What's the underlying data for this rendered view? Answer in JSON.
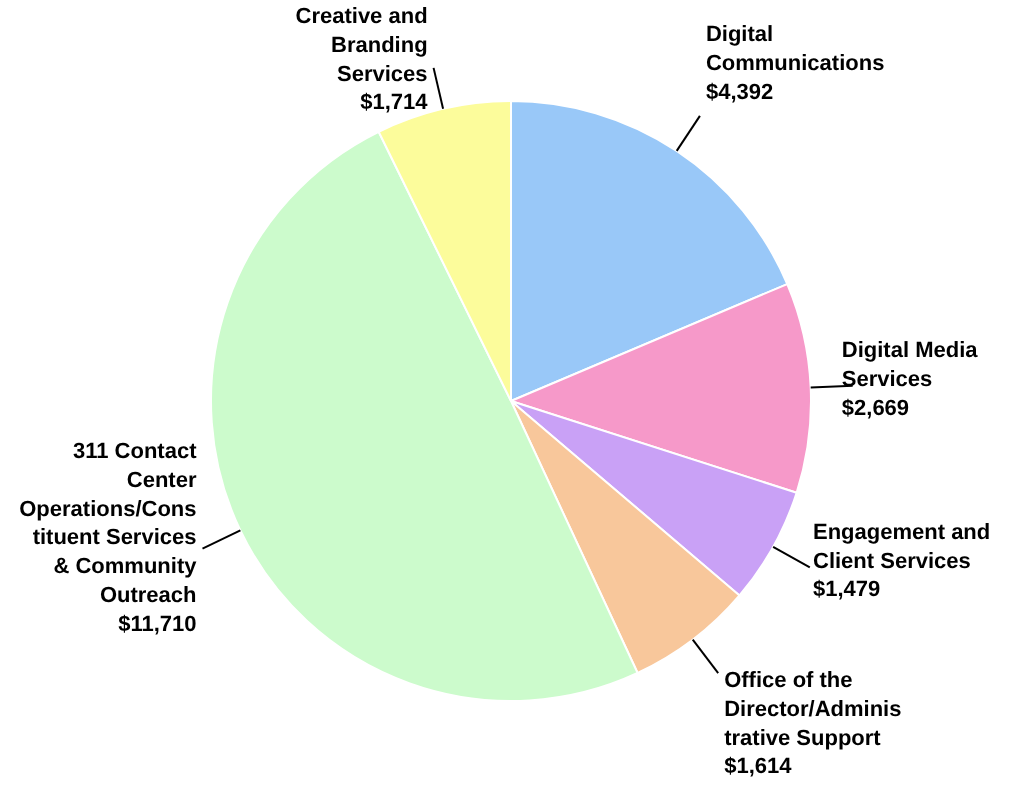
{
  "chart_data": {
    "type": "pie",
    "categories": [
      "Digital\nCommunications",
      "Digital Media\nServices",
      "Engagement and\nClient Services",
      "Office of the\nDirector/Adminis\ntrative Support",
      "311 Contact\nCenter\nOperations/Cons\ntituent Services\n& Community\nOutreach",
      "Creative and\nBranding\nServices"
    ],
    "values": [
      4392,
      2669,
      1479,
      1614,
      11710,
      1714
    ],
    "value_labels": [
      "$4,392",
      "$2,669",
      "$1,479",
      "$1,614",
      "$11,710",
      "$1,714"
    ],
    "colors": [
      "#99c8f8",
      "#f699c9",
      "#c9a1f6",
      "#f8c79b",
      "#ccfbcc",
      "#fcfc9b"
    ]
  }
}
